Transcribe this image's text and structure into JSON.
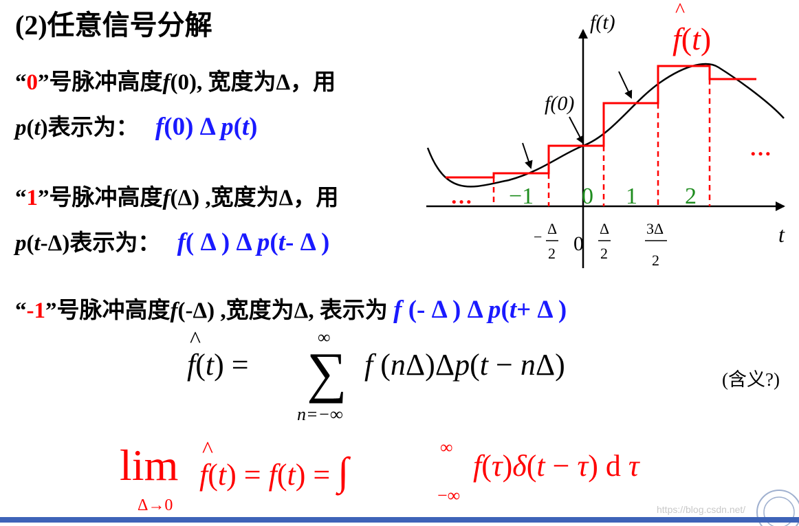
{
  "title": "(2)任意信号分解",
  "lines": {
    "l0": {
      "q": "“",
      "num": "0",
      "q2": "”号脉冲高度",
      "f": "f",
      "arg": "(0),",
      "rest": " 宽度为Δ，用"
    },
    "l0b": {
      "p": "p",
      "arg": "(",
      "t": "t",
      "close": ")表示为：",
      "expr_f": "f",
      "expr_rest": "(0) Δ ",
      "expr_p": "p",
      "expr_arg": "(",
      "expr_t": "t",
      "expr_close": ")"
    },
    "l1": {
      "q": "“",
      "num": "1",
      "q2": "”号脉冲高度",
      "f": "f",
      "arg": "(Δ) ,",
      "rest": "宽度为Δ，用"
    },
    "l1b": {
      "p": "p",
      "arg": "(",
      "t": "t",
      "close": "-Δ)表示为：",
      "expr_f": "f",
      "expr_rest": "( Δ ) Δ ",
      "expr_p": "p",
      "expr_arg": "(",
      "expr_t": "t",
      "expr_close": "- Δ )"
    },
    "lm1": {
      "q": "“",
      "num": "-1",
      "q2": "”号脉冲高度",
      "f": "f",
      "arg": "(-Δ) ,",
      "rest": "宽度为Δ, 表示为 ",
      "expr_f": "f",
      "expr_rest": " (- Δ ) Δ ",
      "expr_p": "p",
      "expr_arg": "(",
      "expr_t": "t",
      "expr_close": "+ Δ )"
    }
  },
  "plot": {
    "axis_y_label": "f(t)",
    "axis_x_label": "t",
    "fhat_label": "f(t)",
    "f0_label": "f(0)",
    "pulse_labels": [
      "−1",
      "0",
      "1",
      "2"
    ],
    "dots": "…",
    "tick_origin": "0",
    "tick_neg_half": {
      "sign": "−",
      "num": "Δ",
      "den": "2"
    },
    "tick_half": {
      "num": "Δ",
      "den": "2"
    },
    "tick_three_half": {
      "num": "3Δ",
      "den": "2"
    },
    "colors": {
      "curve": "#000000",
      "staircase": "#ff0000",
      "pulse_label": "#1e8c1e"
    }
  },
  "formula1": {
    "lhs": "f(t) =",
    "sum_top": "∞",
    "sum_bottom": "n=−∞",
    "rhs": "f(nΔ)Δp(t − nΔ)",
    "note": "(含义?)"
  },
  "formula2": {
    "lim": "lim",
    "lim_sub": "Δ→0",
    "body": "f(t) = f(t) = ∫",
    "int_top": "∞",
    "int_bottom": "−∞",
    "integrand": "f(τ)δ(t − τ) d τ"
  },
  "watermark": "https://blog.csdn.net/"
}
